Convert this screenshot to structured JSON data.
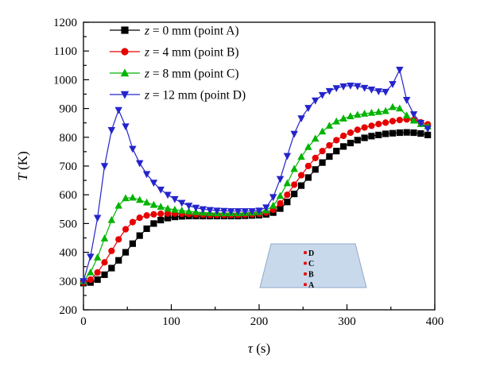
{
  "figure": {
    "background": "#ffffff"
  },
  "chart_data": {
    "type": "line",
    "title": "",
    "xlabel": "τ (s)",
    "ylabel": "T (K)",
    "xlim": [
      0,
      400
    ],
    "ylim": [
      200,
      1200
    ],
    "xticks": [
      0,
      100,
      200,
      300,
      400
    ],
    "yticks": [
      200,
      300,
      400,
      500,
      600,
      700,
      800,
      900,
      1000,
      1100,
      1200
    ],
    "x_minor_step": 50,
    "y_minor_step": 50,
    "grid": false,
    "legend_position": "top-left",
    "x": [
      0,
      8,
      16,
      24,
      32,
      40,
      48,
      56,
      64,
      72,
      80,
      88,
      96,
      104,
      112,
      120,
      128,
      136,
      144,
      152,
      160,
      168,
      176,
      184,
      192,
      200,
      208,
      216,
      224,
      232,
      240,
      248,
      256,
      264,
      272,
      280,
      288,
      296,
      304,
      312,
      320,
      328,
      336,
      344,
      352,
      360,
      368,
      376,
      384,
      392
    ],
    "series": [
      {
        "name": "z = 0 mm (point A)",
        "color": "#000000",
        "marker": "square",
        "values": [
          293,
          295,
          305,
          322,
          345,
          372,
          400,
          430,
          458,
          482,
          500,
          512,
          519,
          523,
          525,
          526,
          526,
          526,
          526,
          526,
          526,
          526,
          526,
          527,
          528,
          529,
          532,
          538,
          552,
          575,
          603,
          632,
          660,
          688,
          712,
          733,
          752,
          768,
          780,
          790,
          798,
          804,
          808,
          812,
          814,
          816,
          817,
          816,
          813,
          808
        ]
      },
      {
        "name": "z = 4 mm (point B)",
        "color": "#e60000",
        "marker": "circle",
        "values": [
          295,
          305,
          330,
          365,
          405,
          445,
          480,
          505,
          520,
          528,
          532,
          534,
          535,
          535,
          534,
          533,
          532,
          531,
          530,
          530,
          530,
          530,
          530,
          531,
          532,
          534,
          538,
          548,
          570,
          600,
          635,
          668,
          700,
          728,
          752,
          772,
          790,
          805,
          816,
          826,
          834,
          840,
          846,
          851,
          856,
          860,
          862,
          860,
          852,
          845
        ]
      },
      {
        "name": "z = 8 mm (point C)",
        "color": "#00b400",
        "marker": "triangle-up",
        "values": [
          300,
          330,
          382,
          448,
          512,
          562,
          588,
          590,
          582,
          573,
          565,
          558,
          552,
          548,
          545,
          542,
          540,
          538,
          537,
          536,
          536,
          536,
          536,
          537,
          538,
          540,
          546,
          562,
          596,
          640,
          690,
          732,
          766,
          795,
          820,
          840,
          855,
          865,
          873,
          878,
          882,
          885,
          888,
          891,
          905,
          900,
          876,
          858,
          846,
          838
        ]
      },
      {
        "name": "z = 12 mm (point D)",
        "color": "#2424cc",
        "marker": "triangle-down",
        "values": [
          300,
          385,
          520,
          700,
          825,
          895,
          838,
          760,
          710,
          672,
          642,
          618,
          600,
          585,
          572,
          562,
          555,
          550,
          547,
          545,
          544,
          543,
          543,
          543,
          543,
          545,
          556,
          592,
          655,
          735,
          812,
          866,
          902,
          928,
          947,
          961,
          971,
          977,
          980,
          978,
          972,
          966,
          960,
          958,
          985,
          1035,
          930,
          880,
          850,
          830
        ]
      }
    ],
    "inset": {
      "shape": "trapezoid-cross-section",
      "fill": "#c9d9ec",
      "stroke": "#90aac8",
      "point_labels": [
        "D",
        "C",
        "B",
        "A"
      ],
      "point_color": "#e60000"
    }
  }
}
